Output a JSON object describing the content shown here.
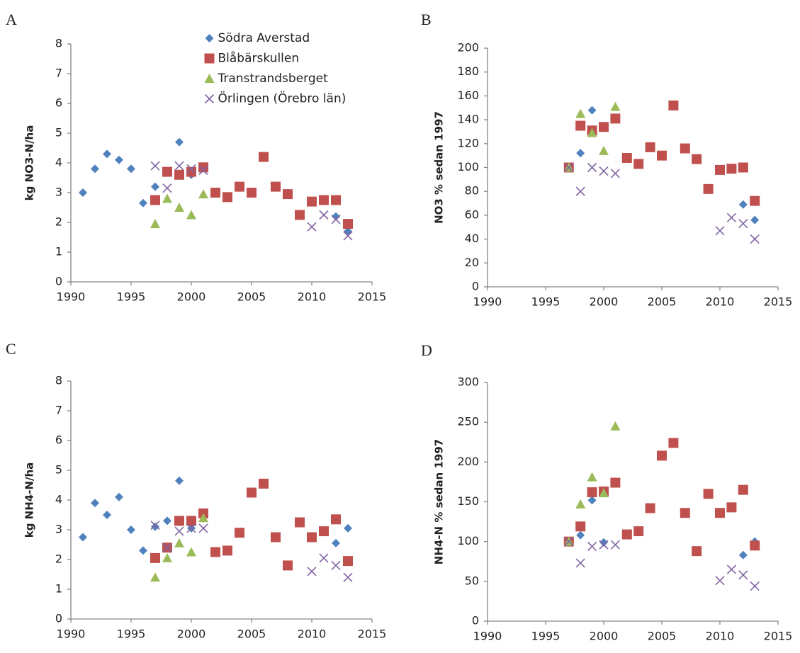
{
  "chart_data": [
    {
      "type": "scatter",
      "label": "A",
      "ylabel": "kg NO3-N/ha",
      "legend": "top",
      "x": [
        1991,
        1992,
        1993,
        1994,
        1995,
        1996,
        1997,
        1998,
        1999,
        2000,
        2001,
        2002,
        2003,
        2004,
        2005,
        2006,
        2007,
        2008,
        2009,
        2010,
        2011,
        2012,
        2013
      ],
      "xlim": [
        1990,
        2015
      ],
      "xticks": [
        1990,
        1995,
        2000,
        2005,
        2010,
        2015
      ],
      "ylim": [
        0,
        8
      ],
      "yticks": [
        0,
        1,
        2,
        3,
        4,
        5,
        6,
        7,
        8
      ],
      "series": [
        {
          "name": "Södra Averstad",
          "color": "#4f81bd",
          "marker": "diamond",
          "values": [
            3.0,
            3.8,
            4.3,
            4.1,
            3.8,
            2.65,
            3.2,
            null,
            4.7,
            3.6,
            null,
            null,
            null,
            null,
            null,
            null,
            null,
            null,
            null,
            null,
            null,
            2.2,
            1.7
          ]
        },
        {
          "name": "Blåbärskullen",
          "color": "#c0504d",
          "marker": "square",
          "values": [
            null,
            null,
            null,
            null,
            null,
            null,
            2.75,
            3.7,
            3.6,
            3.7,
            3.85,
            3.0,
            2.85,
            3.2,
            3.0,
            4.2,
            3.2,
            2.95,
            2.25,
            2.7,
            2.75,
            2.75,
            1.95
          ]
        },
        {
          "name": "Transtrandsberget",
          "color": "#9bbb59",
          "marker": "triangle",
          "values": [
            null,
            null,
            null,
            null,
            null,
            null,
            1.95,
            2.8,
            2.5,
            2.25,
            2.95,
            null,
            null,
            null,
            null,
            null,
            null,
            null,
            null,
            null,
            null,
            null,
            null
          ]
        },
        {
          "name": "Örlingen (Örebro län)",
          "color": "#8064a2",
          "marker": "x",
          "values": [
            null,
            null,
            null,
            null,
            null,
            null,
            3.9,
            3.15,
            3.9,
            3.8,
            3.75,
            null,
            null,
            null,
            null,
            null,
            null,
            null,
            null,
            1.85,
            2.25,
            2.1,
            1.55
          ]
        }
      ]
    },
    {
      "type": "scatter",
      "label": "B",
      "ylabel": "NO3 % sedan 1997",
      "x": [
        1991,
        1992,
        1993,
        1994,
        1995,
        1996,
        1997,
        1998,
        1999,
        2000,
        2001,
        2002,
        2003,
        2004,
        2005,
        2006,
        2007,
        2008,
        2009,
        2010,
        2011,
        2012,
        2013
      ],
      "xlim": [
        1990,
        2015
      ],
      "xticks": [
        1990,
        1995,
        2000,
        2005,
        2010,
        2015
      ],
      "ylim": [
        0,
        200
      ],
      "yticks": [
        0,
        20,
        40,
        60,
        80,
        100,
        120,
        140,
        160,
        180,
        200
      ],
      "series": [
        {
          "color": "#4f81bd",
          "marker": "diamond",
          "values": [
            null,
            null,
            null,
            null,
            null,
            null,
            100,
            112,
            148,
            null,
            null,
            null,
            null,
            null,
            null,
            null,
            null,
            null,
            null,
            null,
            null,
            69,
            56
          ]
        },
        {
          "color": "#c0504d",
          "marker": "square",
          "values": [
            null,
            null,
            null,
            null,
            null,
            null,
            100,
            135,
            131,
            134,
            141,
            108,
            103,
            117,
            110,
            152,
            116,
            107,
            82,
            98,
            99,
            100,
            72
          ]
        },
        {
          "color": "#9bbb59",
          "marker": "triangle",
          "values": [
            null,
            null,
            null,
            null,
            null,
            null,
            100,
            145,
            129,
            114,
            151,
            null,
            null,
            null,
            null,
            null,
            null,
            null,
            null,
            null,
            null,
            null,
            null
          ]
        },
        {
          "color": "#8064a2",
          "marker": "x",
          "values": [
            null,
            null,
            null,
            null,
            null,
            null,
            100,
            80,
            100,
            97,
            95,
            null,
            null,
            null,
            null,
            null,
            null,
            null,
            null,
            47,
            58,
            53,
            40
          ]
        }
      ]
    },
    {
      "type": "scatter",
      "label": "C",
      "ylabel": "kg NH4-N/ha",
      "x": [
        1991,
        1992,
        1993,
        1994,
        1995,
        1996,
        1997,
        1998,
        1999,
        2000,
        2001,
        2002,
        2003,
        2004,
        2005,
        2006,
        2007,
        2008,
        2009,
        2010,
        2011,
        2012,
        2013
      ],
      "xlim": [
        1990,
        2015
      ],
      "xticks": [
        1990,
        1995,
        2000,
        2005,
        2010,
        2015
      ],
      "ylim": [
        0,
        8
      ],
      "yticks": [
        0,
        1,
        2,
        3,
        4,
        5,
        6,
        7,
        8
      ],
      "series": [
        {
          "color": "#4f81bd",
          "marker": "diamond",
          "values": [
            2.75,
            3.9,
            3.5,
            4.1,
            3.0,
            2.3,
            3.1,
            3.3,
            4.65,
            3.05,
            null,
            null,
            null,
            null,
            null,
            null,
            null,
            null,
            null,
            null,
            null,
            2.55,
            3.05
          ]
        },
        {
          "color": "#c0504d",
          "marker": "square",
          "values": [
            null,
            null,
            null,
            null,
            null,
            null,
            2.05,
            2.4,
            3.3,
            3.3,
            3.55,
            2.25,
            2.3,
            2.9,
            4.25,
            4.55,
            2.75,
            1.8,
            3.25,
            2.75,
            2.95,
            3.35,
            1.95
          ]
        },
        {
          "color": "#9bbb59",
          "marker": "triangle",
          "values": [
            null,
            null,
            null,
            null,
            null,
            null,
            1.4,
            2.05,
            2.55,
            2.25,
            3.4,
            null,
            null,
            null,
            null,
            null,
            null,
            null,
            null,
            null,
            null,
            null,
            null
          ]
        },
        {
          "color": "#8064a2",
          "marker": "x",
          "values": [
            null,
            null,
            null,
            null,
            null,
            null,
            3.15,
            2.4,
            2.95,
            3.05,
            3.05,
            null,
            null,
            null,
            null,
            null,
            null,
            null,
            null,
            1.6,
            2.05,
            1.8,
            1.4
          ]
        }
      ]
    },
    {
      "type": "scatter",
      "label": "D",
      "ylabel": "NH4-N % sedan 1997",
      "x": [
        1991,
        1992,
        1993,
        1994,
        1995,
        1996,
        1997,
        1998,
        1999,
        2000,
        2001,
        2002,
        2003,
        2004,
        2005,
        2006,
        2007,
        2008,
        2009,
        2010,
        2011,
        2012,
        2013
      ],
      "xlim": [
        1990,
        2015
      ],
      "xticks": [
        1990,
        1995,
        2000,
        2005,
        2010,
        2015
      ],
      "ylim": [
        0,
        300
      ],
      "yticks": [
        0,
        50,
        100,
        150,
        200,
        250,
        300
      ],
      "series": [
        {
          "color": "#4f81bd",
          "marker": "diamond",
          "values": [
            null,
            null,
            null,
            null,
            null,
            null,
            100,
            108,
            152,
            99,
            null,
            null,
            null,
            null,
            null,
            null,
            null,
            null,
            null,
            null,
            null,
            83,
            100
          ]
        },
        {
          "color": "#c0504d",
          "marker": "square",
          "values": [
            null,
            null,
            null,
            null,
            null,
            null,
            100,
            119,
            162,
            163,
            174,
            109,
            113,
            142,
            208,
            224,
            136,
            88,
            160,
            136,
            143,
            165,
            95
          ]
        },
        {
          "color": "#9bbb59",
          "marker": "triangle",
          "values": [
            null,
            null,
            null,
            null,
            null,
            null,
            100,
            147,
            181,
            161,
            245,
            null,
            null,
            null,
            null,
            null,
            null,
            null,
            null,
            null,
            null,
            null,
            null
          ]
        },
        {
          "color": "#8064a2",
          "marker": "x",
          "values": [
            null,
            null,
            null,
            null,
            null,
            null,
            100,
            73,
            94,
            96,
            96,
            null,
            null,
            null,
            null,
            null,
            null,
            null,
            null,
            51,
            65,
            58,
            44
          ]
        }
      ]
    }
  ]
}
